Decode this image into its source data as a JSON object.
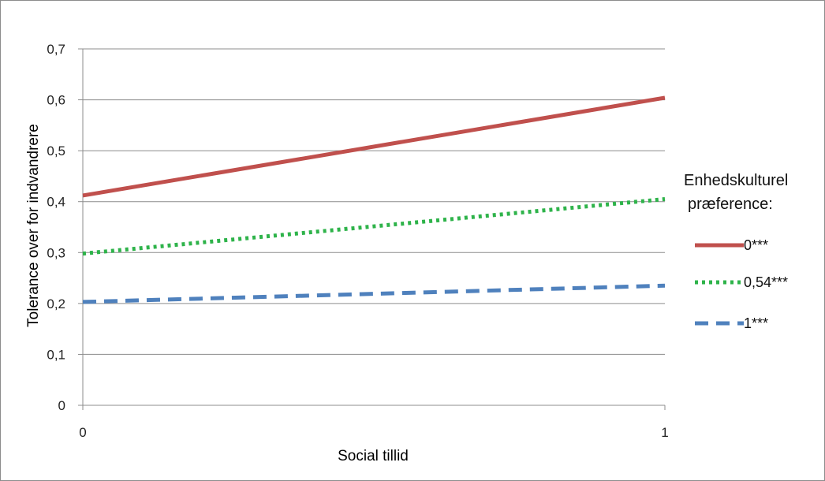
{
  "chart_data": {
    "type": "line",
    "xlabel": "Social tillid",
    "ylabel": "Tolerance over for indvandrere",
    "x": [
      0,
      1
    ],
    "x_tick_labels": [
      "0",
      "1"
    ],
    "ylim": [
      0,
      0.7
    ],
    "y_ticks": [
      0,
      0.1,
      0.2,
      0.3,
      0.4,
      0.5,
      0.6,
      0.7
    ],
    "y_tick_labels": [
      "0",
      "0,1",
      "0,2",
      "0,3",
      "0,4",
      "0,5",
      "0,6",
      "0,7"
    ],
    "grid": "horizontal",
    "legend": {
      "title_lines": [
        "Enhedskulturel",
        "præference:"
      ],
      "placement": "right"
    },
    "series": [
      {
        "name": "0***",
        "values": [
          0.412,
          0.604
        ],
        "color": "#c0504d",
        "style": "solid"
      },
      {
        "name": "0,54***",
        "values": [
          0.298,
          0.405
        ],
        "color": "#2eb34a",
        "style": "dotted"
      },
      {
        "name": "1***",
        "values": [
          0.203,
          0.235
        ],
        "color": "#4f81bd",
        "style": "dashed"
      }
    ]
  }
}
